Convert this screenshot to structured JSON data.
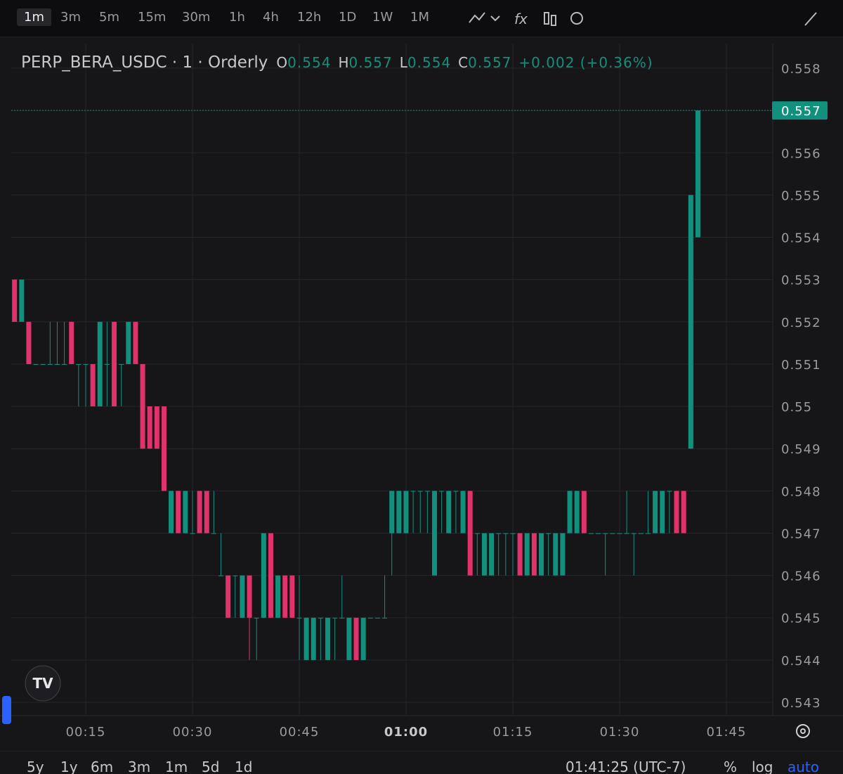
{
  "toolbar": {
    "intervals": [
      "1m",
      "3m",
      "5m",
      "15m",
      "30m",
      "1h",
      "4h",
      "12h",
      "1D",
      "1W",
      "1M"
    ]
  },
  "chart_data": {
    "type": "candlestick",
    "title": "PERP_BERA_USDC · 1 · Orderly",
    "ohlc_labels": [
      "O",
      "H",
      "L",
      "C"
    ],
    "change": "+0.002 (+0.36%)",
    "up_color": "#12907e",
    "down_color": "#e0336b",
    "ylim": [
      0.543,
      0.558
    ],
    "yticks": [
      0.558,
      0.557,
      0.556,
      0.555,
      0.554,
      0.553,
      0.552,
      0.551,
      0.55,
      0.549,
      0.548,
      0.547,
      0.546,
      0.545,
      0.544,
      0.543
    ],
    "xticks": [
      "00:15",
      "00:30",
      "00:45",
      "01:00",
      "01:15",
      "01:30",
      "01:45"
    ],
    "grid": true,
    "candles": [
      {
        "t": "00:05",
        "open": 0.553,
        "high": 0.553,
        "low": 0.552,
        "close": 0.552
      },
      {
        "t": "00:06",
        "open": 0.552,
        "high": 0.553,
        "low": 0.552,
        "close": 0.553
      },
      {
        "t": "00:07",
        "open": 0.552,
        "high": 0.552,
        "low": 0.551,
        "close": 0.551
      },
      {
        "t": "00:08",
        "open": 0.551,
        "high": 0.551,
        "low": 0.551,
        "close": 0.551
      },
      {
        "t": "00:09",
        "open": 0.551,
        "high": 0.551,
        "low": 0.551,
        "close": 0.551
      },
      {
        "t": "00:10",
        "open": 0.551,
        "high": 0.552,
        "low": 0.551,
        "close": 0.551
      },
      {
        "t": "00:11",
        "open": 0.551,
        "high": 0.552,
        "low": 0.551,
        "close": 0.551
      },
      {
        "t": "00:12",
        "open": 0.551,
        "high": 0.552,
        "low": 0.551,
        "close": 0.551
      },
      {
        "t": "00:13",
        "open": 0.552,
        "high": 0.552,
        "low": 0.551,
        "close": 0.551
      },
      {
        "t": "00:14",
        "open": 0.551,
        "high": 0.551,
        "low": 0.55,
        "close": 0.551
      },
      {
        "t": "00:15",
        "open": 0.551,
        "high": 0.551,
        "low": 0.55,
        "close": 0.551
      },
      {
        "t": "00:16",
        "open": 0.551,
        "high": 0.551,
        "low": 0.55,
        "close": 0.55
      },
      {
        "t": "00:17",
        "open": 0.55,
        "high": 0.552,
        "low": 0.55,
        "close": 0.552
      },
      {
        "t": "00:18",
        "open": 0.551,
        "high": 0.552,
        "low": 0.55,
        "close": 0.551
      },
      {
        "t": "00:19",
        "open": 0.552,
        "high": 0.552,
        "low": 0.55,
        "close": 0.55
      },
      {
        "t": "00:20",
        "open": 0.551,
        "high": 0.551,
        "low": 0.55,
        "close": 0.551
      },
      {
        "t": "00:21",
        "open": 0.551,
        "high": 0.552,
        "low": 0.551,
        "close": 0.552
      },
      {
        "t": "00:22",
        "open": 0.552,
        "high": 0.552,
        "low": 0.551,
        "close": 0.551
      },
      {
        "t": "00:23",
        "open": 0.551,
        "high": 0.551,
        "low": 0.549,
        "close": 0.549
      },
      {
        "t": "00:24",
        "open": 0.55,
        "high": 0.55,
        "low": 0.549,
        "close": 0.549
      },
      {
        "t": "00:25",
        "open": 0.55,
        "high": 0.55,
        "low": 0.549,
        "close": 0.549
      },
      {
        "t": "00:26",
        "open": 0.55,
        "high": 0.55,
        "low": 0.548,
        "close": 0.548
      },
      {
        "t": "00:27",
        "open": 0.547,
        "high": 0.548,
        "low": 0.547,
        "close": 0.548
      },
      {
        "t": "00:28",
        "open": 0.548,
        "high": 0.548,
        "low": 0.547,
        "close": 0.547
      },
      {
        "t": "00:29",
        "open": 0.547,
        "high": 0.548,
        "low": 0.547,
        "close": 0.548
      },
      {
        "t": "00:30",
        "open": 0.547,
        "high": 0.548,
        "low": 0.547,
        "close": 0.547
      },
      {
        "t": "00:31",
        "open": 0.548,
        "high": 0.548,
        "low": 0.547,
        "close": 0.547
      },
      {
        "t": "00:32",
        "open": 0.548,
        "high": 0.548,
        "low": 0.547,
        "close": 0.547
      },
      {
        "t": "00:33",
        "open": 0.547,
        "high": 0.548,
        "low": 0.547,
        "close": 0.547
      },
      {
        "t": "00:34",
        "open": 0.546,
        "high": 0.547,
        "low": 0.546,
        "close": 0.546
      },
      {
        "t": "00:35",
        "open": 0.546,
        "high": 0.546,
        "low": 0.545,
        "close": 0.545
      },
      {
        "t": "00:36",
        "open": 0.546,
        "high": 0.546,
        "low": 0.545,
        "close": 0.546
      },
      {
        "t": "00:37",
        "open": 0.545,
        "high": 0.546,
        "low": 0.545,
        "close": 0.546
      },
      {
        "t": "00:38",
        "open": 0.546,
        "high": 0.546,
        "low": 0.544,
        "close": 0.545
      },
      {
        "t": "00:39",
        "open": 0.545,
        "high": 0.545,
        "low": 0.544,
        "close": 0.545
      },
      {
        "t": "00:40",
        "open": 0.545,
        "high": 0.547,
        "low": 0.545,
        "close": 0.547
      },
      {
        "t": "00:41",
        "open": 0.547,
        "high": 0.547,
        "low": 0.545,
        "close": 0.545
      },
      {
        "t": "00:42",
        "open": 0.545,
        "high": 0.546,
        "low": 0.545,
        "close": 0.546
      },
      {
        "t": "00:43",
        "open": 0.546,
        "high": 0.546,
        "low": 0.545,
        "close": 0.545
      },
      {
        "t": "00:44",
        "open": 0.546,
        "high": 0.546,
        "low": 0.545,
        "close": 0.545
      },
      {
        "t": "00:45",
        "open": 0.545,
        "high": 0.546,
        "low": 0.544,
        "close": 0.545
      },
      {
        "t": "00:46",
        "open": 0.544,
        "high": 0.545,
        "low": 0.544,
        "close": 0.545
      },
      {
        "t": "00:47",
        "open": 0.544,
        "high": 0.545,
        "low": 0.544,
        "close": 0.545
      },
      {
        "t": "00:48",
        "open": 0.545,
        "high": 0.545,
        "low": 0.544,
        "close": 0.545
      },
      {
        "t": "00:49",
        "open": 0.544,
        "high": 0.545,
        "low": 0.544,
        "close": 0.545
      },
      {
        "t": "00:50",
        "open": 0.545,
        "high": 0.545,
        "low": 0.544,
        "close": 0.545
      },
      {
        "t": "00:51",
        "open": 0.545,
        "high": 0.546,
        "low": 0.545,
        "close": 0.545
      },
      {
        "t": "00:52",
        "open": 0.544,
        "high": 0.545,
        "low": 0.544,
        "close": 0.545
      },
      {
        "t": "00:53",
        "open": 0.545,
        "high": 0.545,
        "low": 0.544,
        "close": 0.544
      },
      {
        "t": "00:54",
        "open": 0.544,
        "high": 0.545,
        "low": 0.544,
        "close": 0.545
      },
      {
        "t": "00:55",
        "open": 0.545,
        "high": 0.545,
        "low": 0.545,
        "close": 0.545
      },
      {
        "t": "00:56",
        "open": 0.545,
        "high": 0.545,
        "low": 0.545,
        "close": 0.545
      },
      {
        "t": "00:57",
        "open": 0.545,
        "high": 0.546,
        "low": 0.545,
        "close": 0.545
      },
      {
        "t": "00:58",
        "open": 0.547,
        "high": 0.548,
        "low": 0.546,
        "close": 0.548
      },
      {
        "t": "00:59",
        "open": 0.547,
        "high": 0.548,
        "low": 0.547,
        "close": 0.548
      },
      {
        "t": "01:00",
        "open": 0.547,
        "high": 0.548,
        "low": 0.547,
        "close": 0.548
      },
      {
        "t": "01:01",
        "open": 0.548,
        "high": 0.548,
        "low": 0.547,
        "close": 0.548
      },
      {
        "t": "01:02",
        "open": 0.548,
        "high": 0.548,
        "low": 0.547,
        "close": 0.548
      },
      {
        "t": "01:03",
        "open": 0.548,
        "high": 0.548,
        "low": 0.547,
        "close": 0.548
      },
      {
        "t": "01:04",
        "open": 0.546,
        "high": 0.548,
        "low": 0.546,
        "close": 0.548
      },
      {
        "t": "01:05",
        "open": 0.548,
        "high": 0.548,
        "low": 0.547,
        "close": 0.548
      },
      {
        "t": "01:06",
        "open": 0.547,
        "high": 0.548,
        "low": 0.547,
        "close": 0.548
      },
      {
        "t": "01:07",
        "open": 0.548,
        "high": 0.548,
        "low": 0.547,
        "close": 0.548
      },
      {
        "t": "01:08",
        "open": 0.547,
        "high": 0.548,
        "low": 0.547,
        "close": 0.548
      },
      {
        "t": "01:09",
        "open": 0.548,
        "high": 0.548,
        "low": 0.546,
        "close": 0.546
      },
      {
        "t": "01:10",
        "open": 0.547,
        "high": 0.547,
        "low": 0.546,
        "close": 0.547
      },
      {
        "t": "01:11",
        "open": 0.546,
        "high": 0.547,
        "low": 0.546,
        "close": 0.547
      },
      {
        "t": "01:12",
        "open": 0.546,
        "high": 0.547,
        "low": 0.546,
        "close": 0.547
      },
      {
        "t": "01:13",
        "open": 0.547,
        "high": 0.547,
        "low": 0.546,
        "close": 0.547
      },
      {
        "t": "01:14",
        "open": 0.547,
        "high": 0.547,
        "low": 0.546,
        "close": 0.547
      },
      {
        "t": "01:15",
        "open": 0.547,
        "high": 0.547,
        "low": 0.546,
        "close": 0.547
      },
      {
        "t": "01:16",
        "open": 0.547,
        "high": 0.547,
        "low": 0.546,
        "close": 0.546
      },
      {
        "t": "01:17",
        "open": 0.546,
        "high": 0.547,
        "low": 0.546,
        "close": 0.547
      },
      {
        "t": "01:18",
        "open": 0.547,
        "high": 0.547,
        "low": 0.546,
        "close": 0.546
      },
      {
        "t": "01:19",
        "open": 0.546,
        "high": 0.547,
        "low": 0.546,
        "close": 0.547
      },
      {
        "t": "01:20",
        "open": 0.547,
        "high": 0.547,
        "low": 0.546,
        "close": 0.547
      },
      {
        "t": "01:21",
        "open": 0.546,
        "high": 0.547,
        "low": 0.546,
        "close": 0.547
      },
      {
        "t": "01:22",
        "open": 0.546,
        "high": 0.547,
        "low": 0.546,
        "close": 0.547
      },
      {
        "t": "01:23",
        "open": 0.547,
        "high": 0.548,
        "low": 0.547,
        "close": 0.548
      },
      {
        "t": "01:24",
        "open": 0.547,
        "high": 0.548,
        "low": 0.547,
        "close": 0.548
      },
      {
        "t": "01:25",
        "open": 0.548,
        "high": 0.548,
        "low": 0.547,
        "close": 0.547
      },
      {
        "t": "01:26",
        "open": 0.547,
        "high": 0.547,
        "low": 0.547,
        "close": 0.547
      },
      {
        "t": "01:27",
        "open": 0.547,
        "high": 0.547,
        "low": 0.547,
        "close": 0.547
      },
      {
        "t": "01:28",
        "open": 0.547,
        "high": 0.547,
        "low": 0.546,
        "close": 0.547
      },
      {
        "t": "01:29",
        "open": 0.547,
        "high": 0.547,
        "low": 0.547,
        "close": 0.547
      },
      {
        "t": "01:30",
        "open": 0.547,
        "high": 0.547,
        "low": 0.547,
        "close": 0.547
      },
      {
        "t": "01:31",
        "open": 0.547,
        "high": 0.548,
        "low": 0.547,
        "close": 0.547
      },
      {
        "t": "01:32",
        "open": 0.547,
        "high": 0.547,
        "low": 0.546,
        "close": 0.547
      },
      {
        "t": "01:33",
        "open": 0.547,
        "high": 0.547,
        "low": 0.547,
        "close": 0.547
      },
      {
        "t": "01:34",
        "open": 0.547,
        "high": 0.548,
        "low": 0.547,
        "close": 0.547
      },
      {
        "t": "01:35",
        "open": 0.547,
        "high": 0.548,
        "low": 0.547,
        "close": 0.548
      },
      {
        "t": "01:36",
        "open": 0.547,
        "high": 0.548,
        "low": 0.547,
        "close": 0.548
      },
      {
        "t": "01:37",
        "open": 0.548,
        "high": 0.548,
        "low": 0.547,
        "close": 0.548
      },
      {
        "t": "01:38",
        "open": 0.548,
        "high": 0.548,
        "low": 0.547,
        "close": 0.547
      },
      {
        "t": "01:39",
        "open": 0.548,
        "high": 0.548,
        "low": 0.547,
        "close": 0.547
      },
      {
        "t": "01:40",
        "open": 0.549,
        "high": 0.555,
        "low": 0.549,
        "close": 0.555
      },
      {
        "t": "01:41",
        "open": 0.554,
        "high": 0.557,
        "low": 0.554,
        "close": 0.557
      }
    ]
  },
  "bottombar": {
    "ranges": [
      "5y",
      "1y",
      "6m",
      "3m",
      "1m",
      "5d",
      "1d"
    ],
    "clock": "01:41:25 (UTC-7)",
    "percent": "%",
    "log": "log",
    "auto": "auto"
  }
}
